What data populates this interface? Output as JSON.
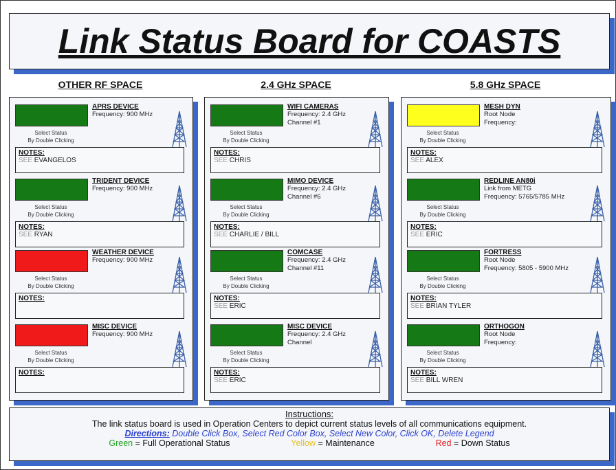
{
  "title": "Link Status Board for COASTS",
  "status_hint": [
    "Select Status",
    "By Double Clicking"
  ],
  "notes_label": "NOTES:",
  "columns": [
    {
      "heading": "OTHER RF SPACE",
      "devices": [
        {
          "name": "APRS DEVICE",
          "color": "#157a15",
          "lines": [
            "Frequency: 900 MHz"
          ],
          "note_prefix": "SEE",
          "note": "EVANGELOS"
        },
        {
          "name": "TRIDENT DEVICE",
          "color": "#157a15",
          "lines": [
            "Frequency: 900 MHz"
          ],
          "note_prefix": "SEE",
          "note": "RYAN"
        },
        {
          "name": "WEATHER DEVICE",
          "color": "#f01a1a",
          "lines": [
            "Frequency: 900 MHz"
          ]
        },
        {
          "name": "MISC DEVICE",
          "color": "#f01a1a",
          "lines": [
            "Frequency: 900 MHz"
          ]
        }
      ]
    },
    {
      "heading": "2.4 GHz SPACE",
      "devices": [
        {
          "name": "WIFI CAMERAS",
          "color": "#157a15",
          "lines": [
            "Frequency: 2.4 GHz",
            "Channel #1"
          ],
          "note_prefix": "SEE",
          "note": "CHRIS"
        },
        {
          "name": "MIMO DEVICE",
          "color": "#157a15",
          "lines": [
            "Frequency: 2.4 GHz",
            "Channel #6"
          ],
          "note_prefix": "SEE",
          "note": "CHARLIE / BILL"
        },
        {
          "name": "COMCASE",
          "color": "#157a15",
          "lines": [
            "Frequency: 2.4 GHz",
            "Channel #11"
          ],
          "note_prefix": "SEE",
          "note": "ERIC"
        },
        {
          "name": "MISC DEVICE",
          "color": "#157a15",
          "lines": [
            "Frequency: 2.4 GHz",
            "Channel"
          ],
          "note_prefix": "SEE",
          "note": "ERIC"
        }
      ]
    },
    {
      "heading": "5.8 GHz SPACE",
      "devices": [
        {
          "name": "MESH DYN",
          "color": "#ffff1e",
          "lines": [
            "Root Node",
            "Frequency:"
          ],
          "note_prefix": "SEE",
          "note": "ALEX"
        },
        {
          "name": "REDLINE AN80i",
          "color": "#157a15",
          "lines": [
            "Link from METG",
            "Frequency: 5765/5785 MHz"
          ],
          "note_prefix": "SEE",
          "note": "ERIC"
        },
        {
          "name": "FORTRESS",
          "color": "#157a15",
          "lines": [
            "Root Node",
            "Frequency: 5805 - 5900 MHz"
          ],
          "note_prefix": "SEE",
          "note": "BRIAN TYLER"
        },
        {
          "name": "ORTHOGON",
          "color": "#157a15",
          "lines": [
            "Root Node",
            "Frequency:"
          ],
          "note_prefix": "SEE",
          "note": "BILL WREN"
        }
      ]
    }
  ],
  "instructions": {
    "heading": "Instructions:",
    "text": "The link status board is used in Operation Centers to depict current status levels of all communications equipment.",
    "directions_label": "Directions:",
    "directions": "Double Click Box, Select Red Color Box, Select New Color, Click OK, Delete Legend",
    "legend": [
      {
        "word": "Green",
        "color": "#22a022",
        "meaning": "= Full Operational Status"
      },
      {
        "word": "Yellow",
        "color": "#e8c020",
        "meaning": "= Maintenance"
      },
      {
        "word": "Red",
        "color": "#e02020",
        "meaning": "= Down Status"
      }
    ]
  }
}
